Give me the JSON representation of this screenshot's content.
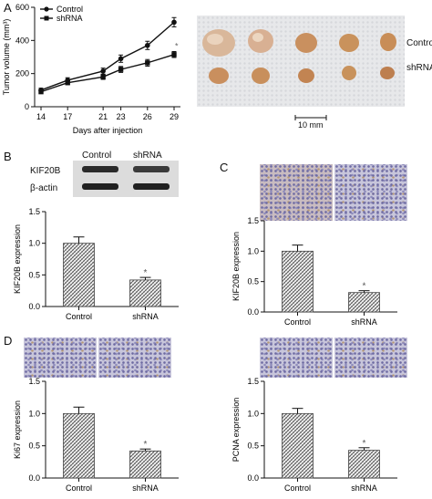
{
  "panels": {
    "A": "A",
    "B": "B",
    "C": "C",
    "D": "D"
  },
  "photo_labels": {
    "control": "Control",
    "shrna": "shRNA",
    "scale": "10 mm"
  },
  "western_blot": {
    "col_control": "Control",
    "col_shrna": "shRNA",
    "row1": "KIF20B",
    "row2": "β-actin"
  },
  "colors": {
    "line": "#111111",
    "bar_hatch": "#555555"
  },
  "chart_data": [
    {
      "id": "A",
      "type": "line",
      "xlabel": "Days after injection",
      "ylabel": "Tumor volume (mm³)",
      "x": [
        14,
        17,
        21,
        23,
        26,
        29
      ],
      "ylim": [
        0,
        600
      ],
      "yticks": [
        0,
        200,
        400,
        600
      ],
      "grid": false,
      "legend": "top-left",
      "series": [
        {
          "name": "Control",
          "marker": "circle",
          "values": [
            100,
            160,
            215,
            290,
            370,
            510
          ],
          "errors": [
            12,
            15,
            18,
            22,
            25,
            28
          ]
        },
        {
          "name": "shRNA",
          "marker": "square",
          "values": [
            90,
            145,
            180,
            225,
            265,
            315
          ],
          "errors": [
            10,
            12,
            15,
            18,
            20,
            18
          ]
        }
      ],
      "annotations": [
        "*"
      ]
    },
    {
      "id": "B",
      "type": "bar",
      "categories": [
        "Control",
        "shRNA"
      ],
      "values": [
        1.0,
        0.42
      ],
      "errors": [
        0.1,
        0.04
      ],
      "ylabel": "KIF20B expression",
      "ylim": [
        0,
        1.5
      ],
      "yticks": [
        "0.0",
        "0.5",
        "1.0",
        "1.5"
      ],
      "annotations": [
        "*"
      ]
    },
    {
      "id": "C",
      "type": "bar",
      "categories": [
        "Control",
        "shRNA"
      ],
      "values": [
        1.0,
        0.32
      ],
      "errors": [
        0.1,
        0.03
      ],
      "ylabel": "KIF20B expression",
      "ylim": [
        0,
        1.5
      ],
      "yticks": [
        "0.0",
        "0.5",
        "1.0",
        "1.5"
      ],
      "annotations": [
        "*"
      ]
    },
    {
      "id": "D1",
      "type": "bar",
      "categories": [
        "Control",
        "shRNA"
      ],
      "values": [
        1.0,
        0.42
      ],
      "errors": [
        0.1,
        0.03
      ],
      "ylabel": "Ki67 expression",
      "ylim": [
        0,
        1.5
      ],
      "yticks": [
        "0.0",
        "0.5",
        "1.0",
        "1.5"
      ],
      "annotations": [
        "*"
      ]
    },
    {
      "id": "D2",
      "type": "bar",
      "categories": [
        "Control",
        "shRNA"
      ],
      "values": [
        1.0,
        0.43
      ],
      "errors": [
        0.08,
        0.04
      ],
      "ylabel": "PCNA expression",
      "ylim": [
        0,
        1.5
      ],
      "yticks": [
        "0.0",
        "0.5",
        "1.0",
        "1.5"
      ],
      "annotations": [
        "*"
      ]
    }
  ]
}
